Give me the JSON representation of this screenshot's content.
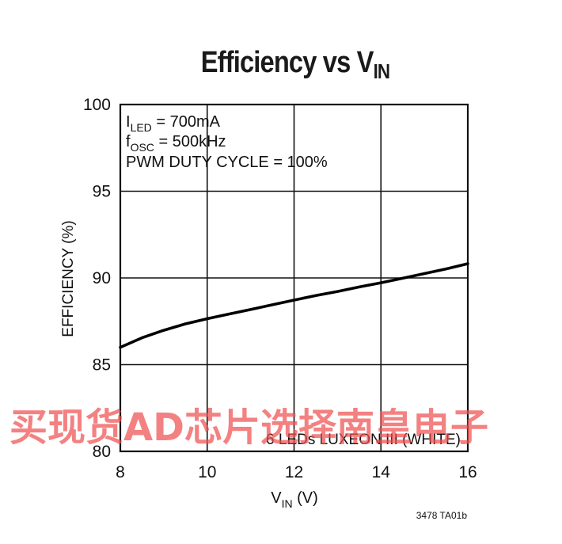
{
  "page": {
    "title_main": "Efficiency vs V",
    "title_sub": "IN",
    "figure_code": "3478 TA01b",
    "watermark": "买现货AD芯片选择南皇电子"
  },
  "annotations": {
    "line1_main": "I",
    "line1_sub": "LED",
    "line1_rest": " = 700mA",
    "line2_main": "f",
    "line2_sub": "OSC",
    "line2_rest": " = 500kHz",
    "line3": "PWM DUTY CYCLE = 100%",
    "curve_label": "6 LEDs LUXEON III (WHITE)"
  },
  "chart_data": {
    "type": "line",
    "title": "Efficiency vs VIN",
    "xlabel": "VIN (V)",
    "ylabel": "EFFICIENCY (%)",
    "xlim": [
      8,
      16
    ],
    "ylim": [
      80,
      100
    ],
    "xticks": [
      8,
      10,
      12,
      14,
      16
    ],
    "yticks": [
      80,
      85,
      90,
      95,
      100
    ],
    "xlabel_main": "V",
    "xlabel_sub": "IN",
    "xlabel_rest": " (V)",
    "grid": true,
    "line_color": "#000000",
    "series": [
      {
        "x": [
          8,
          8.5,
          9,
          9.5,
          10,
          10.5,
          11,
          11.5,
          12,
          12.5,
          13,
          13.5,
          14,
          14.5,
          15,
          15.5,
          16
        ],
        "values": [
          86.0,
          86.55,
          86.98,
          87.35,
          87.65,
          87.92,
          88.18,
          88.45,
          88.72,
          88.98,
          89.22,
          89.48,
          89.72,
          89.98,
          90.25,
          90.52,
          90.82
        ]
      }
    ]
  }
}
